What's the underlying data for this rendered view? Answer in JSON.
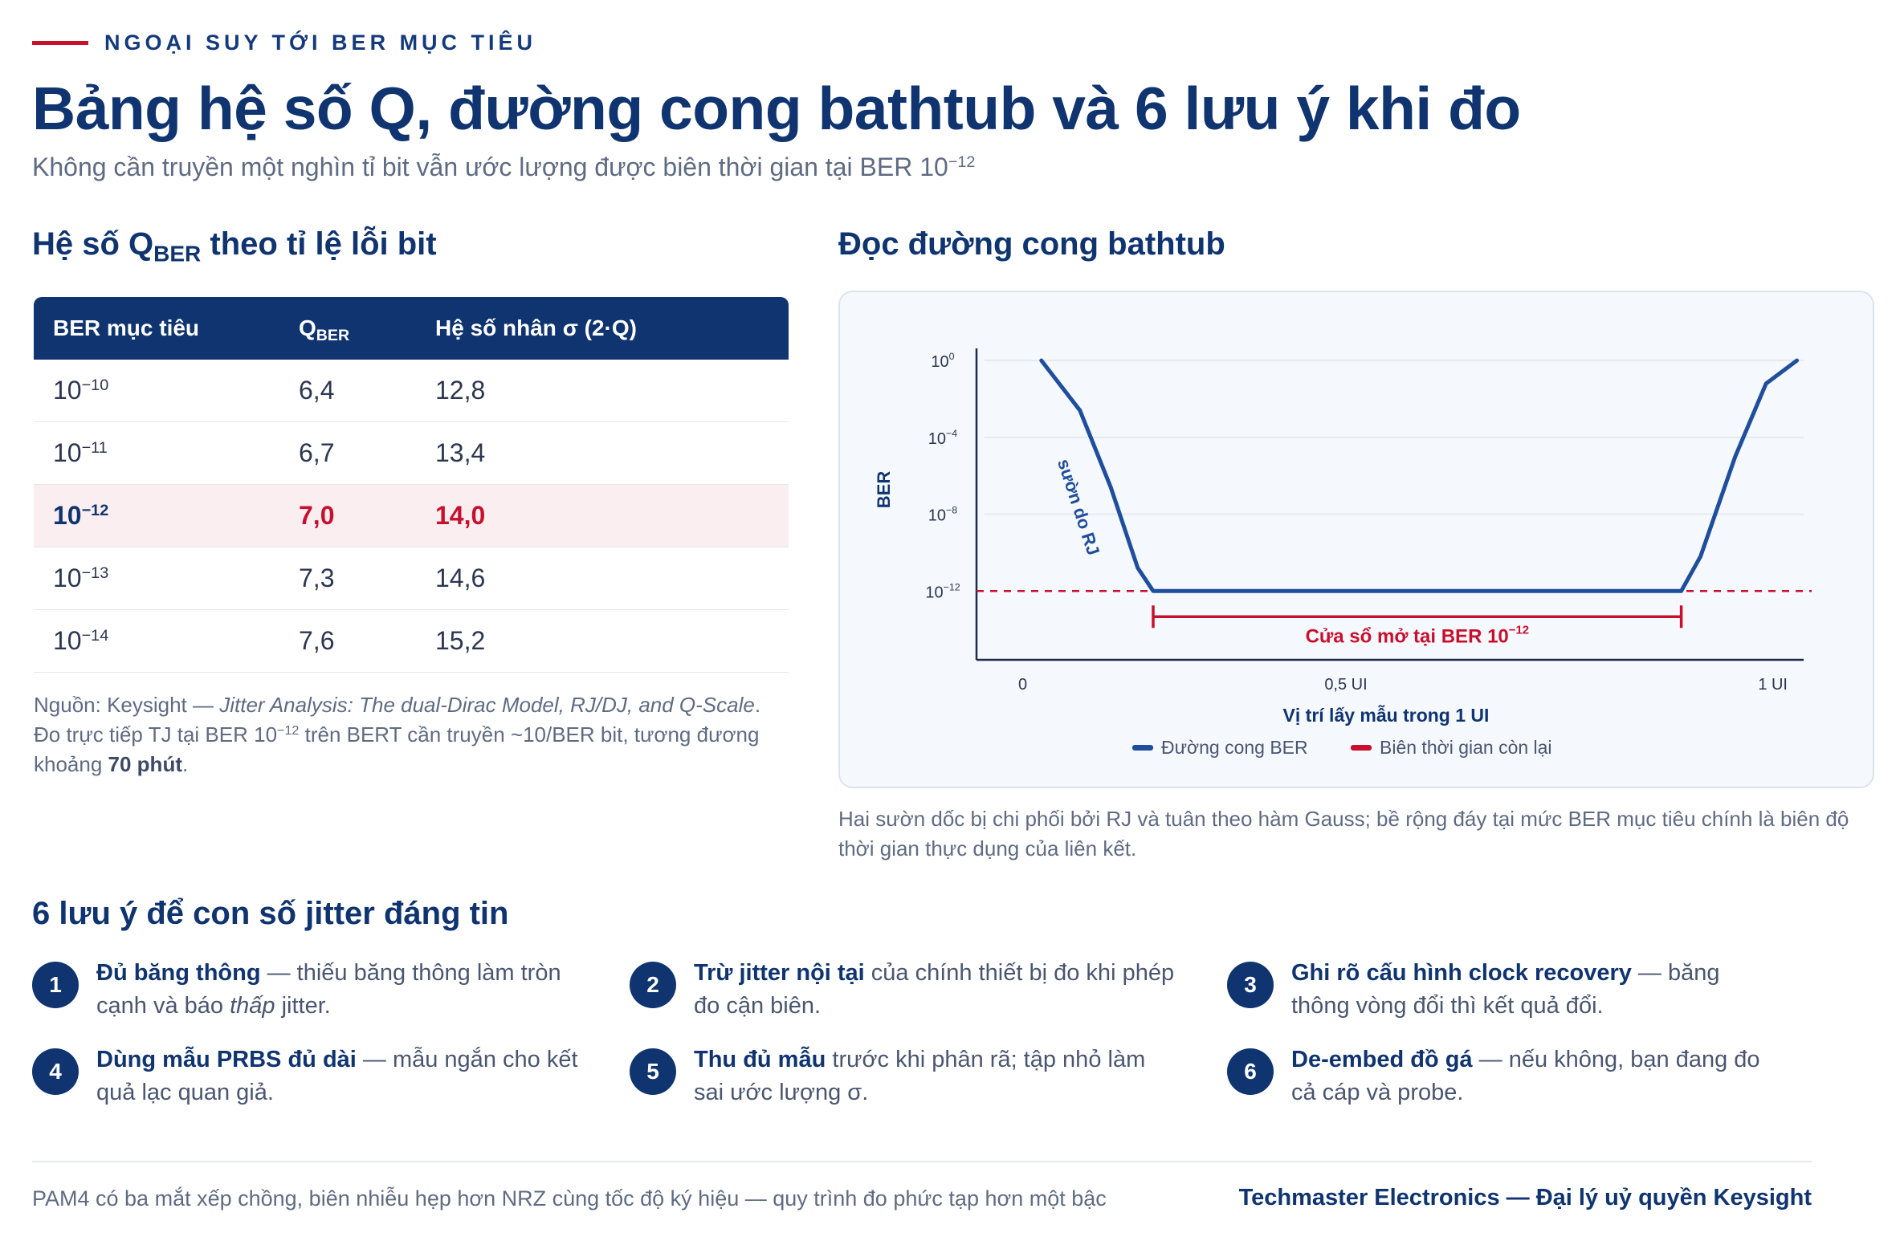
{
  "eyebrow": "NGOẠI SUY TỚI BER MỤC TIÊU",
  "title": "Bảng hệ số Q, đường cong bathtub và 6 lưu ý khi đo",
  "subtitle": {
    "text": "Không cần truyền một nghìn tỉ bit vẫn ước lượng được biên thời gian tại BER 10",
    "exp": "−12"
  },
  "table_section": {
    "heading_prefix": "Hệ số Q",
    "heading_sub": "BER",
    "heading_suffix": " theo tỉ lệ lỗi bit",
    "headers": {
      "ber": "BER mục tiêu",
      "q": "Q",
      "q_sub": "BER",
      "mult": "Hệ số nhân σ (2·Q)"
    },
    "rows": [
      {
        "base": "10",
        "exp": "−10",
        "q": "6,4",
        "mult": "12,8",
        "highlight": false
      },
      {
        "base": "10",
        "exp": "−11",
        "q": "6,7",
        "mult": "13,4",
        "highlight": false
      },
      {
        "base": "10",
        "exp": "−12",
        "q": "7,0",
        "mult": "14,0",
        "highlight": true
      },
      {
        "base": "10",
        "exp": "−13",
        "q": "7,3",
        "mult": "14,6",
        "highlight": false
      },
      {
        "base": "10",
        "exp": "−14",
        "q": "7,6",
        "mult": "15,2",
        "highlight": false
      }
    ],
    "note": {
      "source_prefix": "Nguồn: Keysight — ",
      "source_title": "Jitter Analysis: The dual-Dirac Model, RJ/DJ, and Q-Scale",
      "source_end": ".",
      "line2_a": "Đo trực tiếp TJ tại BER 10",
      "line2_exp": "−12",
      "line2_b": " trên BERT cần truyền ~10/BER bit, tương đương khoảng ",
      "line2_bold": "70 phút",
      "line2_end": "."
    }
  },
  "chart_section": {
    "heading": "Đọc đường cong bathtub",
    "caption": "Hai sườn dốc bị chi phối bởi RJ và tuân theo hàm Gauss; bề rộng đáy tại mức BER mục tiêu chính là biên độ thời gian thực dụng của liên kết."
  },
  "chart_data": {
    "type": "line",
    "ylabel": "BER",
    "xlabel": "Vị trí lấy mẫu trong 1 UI",
    "x_ticks": [
      "0",
      "0,5 UI",
      "1 UI"
    ],
    "y_ticks": [
      {
        "base": "10",
        "exp": "0",
        "log": 0
      },
      {
        "base": "10",
        "exp": "−4",
        "log": -4
      },
      {
        "base": "10",
        "exp": "−8",
        "log": -8
      },
      {
        "base": "10",
        "exp": "−12",
        "log": -12
      }
    ],
    "ylim_log": [
      -15.5,
      0.8
    ],
    "xlim": [
      0,
      1
    ],
    "series": [
      {
        "name": "Đường cong BER",
        "color": "#1f4e9c",
        "points": [
          [
            0.03,
            0.0
          ],
          [
            0.08,
            -2.6
          ],
          [
            0.12,
            -6.6
          ],
          [
            0.155,
            -10.8
          ],
          [
            0.175,
            -12
          ],
          [
            0.5,
            -12
          ],
          [
            0.86,
            -12
          ],
          [
            0.885,
            -10.2
          ],
          [
            0.93,
            -5.0
          ],
          [
            0.97,
            -1.2
          ],
          [
            1.01,
            0.0
          ]
        ]
      },
      {
        "name": "Biên thời gian còn lại",
        "color": "#c8102e",
        "style": "dashed",
        "value_log": -12
      }
    ],
    "open_window": {
      "x_start": 0.175,
      "x_end": 0.86,
      "label": "Cửa sổ mở tại BER 10",
      "label_exp": "−12"
    },
    "annotation": "sườn do RJ"
  },
  "tips_section": {
    "heading": "6 lưu ý để con số jitter đáng tin",
    "tips": [
      {
        "num": "1",
        "bold": "Đủ băng thông",
        "a": " — thiếu băng thông làm tròn cạnh và báo ",
        "i": "thấp",
        "b": " jitter."
      },
      {
        "num": "2",
        "bold": "Trừ jitter nội tại",
        "a": " của chính thiết bị đo khi phép đo cận biên.",
        "i": "",
        "b": ""
      },
      {
        "num": "3",
        "bold": "Ghi rõ cấu hình clock recovery",
        "a": " — băng thông vòng đổi thì kết quả đổi.",
        "i": "",
        "b": ""
      },
      {
        "num": "4",
        "bold": "Dùng mẫu PRBS đủ dài",
        "a": " — mẫu ngắn cho kết quả lạc quan giả.",
        "i": "",
        "b": ""
      },
      {
        "num": "5",
        "bold": "Thu đủ mẫu",
        "a": " trước khi phân rã; tập nhỏ làm sai ước lượng σ.",
        "i": "",
        "b": ""
      },
      {
        "num": "6",
        "bold": "De-embed đồ gá",
        "a": " — nếu không, bạn đang đo cả cáp và probe.",
        "i": "",
        "b": ""
      }
    ]
  },
  "footer": {
    "left": "PAM4 có ba mắt xếp chồng, biên nhiễu hẹp hơn NRZ cùng tốc độ ký hiệu — quy trình đo phức tạp hơn một bậc",
    "right": "Techmaster Electronics — Đại lý uỷ quyền Keysight"
  },
  "colors": {
    "navy": "#0f3470",
    "accent": "#c8102e",
    "curve": "#1f4e9c"
  }
}
